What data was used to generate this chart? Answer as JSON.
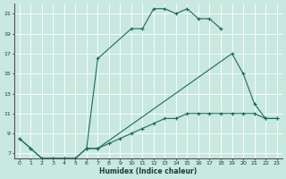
{
  "xlabel": "Humidex (Indice chaleur)",
  "bg_color": "#c8e8e0",
  "grid_color": "#ffffff",
  "line_color": "#1a6b5a",
  "xlim": [
    -0.5,
    23.5
  ],
  "ylim": [
    6.5,
    22
  ],
  "xticks": [
    0,
    1,
    2,
    3,
    4,
    5,
    6,
    7,
    8,
    9,
    10,
    11,
    12,
    13,
    14,
    15,
    16,
    17,
    18,
    19,
    20,
    21,
    22,
    23
  ],
  "yticks": [
    7,
    9,
    11,
    13,
    15,
    17,
    19,
    21
  ],
  "series": [
    {
      "x": [
        0,
        1,
        2,
        3,
        4,
        5,
        6,
        7,
        10,
        11,
        12,
        13,
        14,
        15,
        16,
        17,
        18
      ],
      "y": [
        8.5,
        7.5,
        6.5,
        6.5,
        6.5,
        6.5,
        7.5,
        16.5,
        19.5,
        19.5,
        21.5,
        21.5,
        21.0,
        21.5,
        20.5,
        20.5,
        19.5
      ]
    },
    {
      "x": [
        0,
        1,
        2,
        3,
        4,
        5,
        6,
        7,
        19,
        20,
        21,
        22,
        23
      ],
      "y": [
        8.5,
        7.5,
        6.5,
        6.5,
        6.5,
        6.5,
        7.5,
        7.5,
        17.0,
        15.0,
        12.0,
        10.5,
        10.5
      ]
    },
    {
      "x": [
        6,
        7,
        8,
        9,
        10,
        11,
        12,
        13,
        14,
        15,
        16,
        17,
        18,
        19,
        20,
        21,
        22,
        23
      ],
      "y": [
        7.5,
        7.5,
        8.0,
        8.5,
        9.0,
        9.5,
        10.0,
        10.5,
        10.5,
        11.0,
        11.0,
        11.0,
        11.0,
        11.0,
        11.0,
        11.0,
        10.5,
        10.5
      ]
    }
  ]
}
